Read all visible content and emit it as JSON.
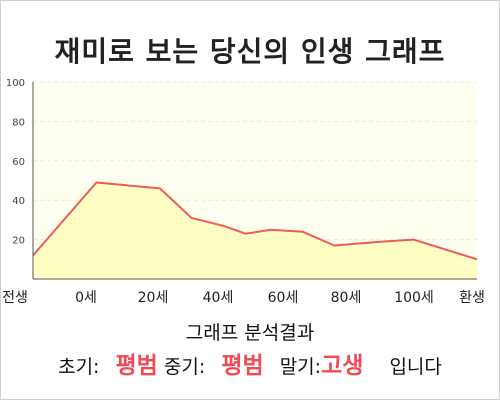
{
  "title": "재미로 보는 당신의 인생 그래프",
  "chart_data": {
    "type": "area",
    "x_categories": [
      "전생",
      "0세",
      "20세",
      "40세",
      "60세",
      "80세",
      "100세",
      "환생"
    ],
    "points": [
      {
        "x": -20,
        "y": 12
      },
      {
        "x": 0,
        "y": 49
      },
      {
        "x": 20,
        "y": 46
      },
      {
        "x": 30,
        "y": 31
      },
      {
        "x": 40,
        "y": 27
      },
      {
        "x": 47,
        "y": 23
      },
      {
        "x": 55,
        "y": 25
      },
      {
        "x": 65,
        "y": 24
      },
      {
        "x": 75,
        "y": 17
      },
      {
        "x": 90,
        "y": 19
      },
      {
        "x": 100,
        "y": 20
      },
      {
        "x": 120,
        "y": 10
      }
    ],
    "ylim": [
      0,
      100
    ],
    "yticks": [
      20,
      40,
      60,
      80,
      100
    ],
    "xlim": [
      -20,
      120
    ],
    "grid": true,
    "colors": {
      "line": "#ef5a5a",
      "fill": "#ffffc4",
      "plot_bg": "#fffff0",
      "grid": "#e8e8e0"
    }
  },
  "analysis": {
    "title": "그래프 분석결과",
    "early_label": "초기:",
    "early_value": "평범",
    "middle_label": "중기:",
    "middle_value": "평범",
    "late_label": "말기:",
    "late_value": "고생",
    "suffix": "입니다"
  }
}
